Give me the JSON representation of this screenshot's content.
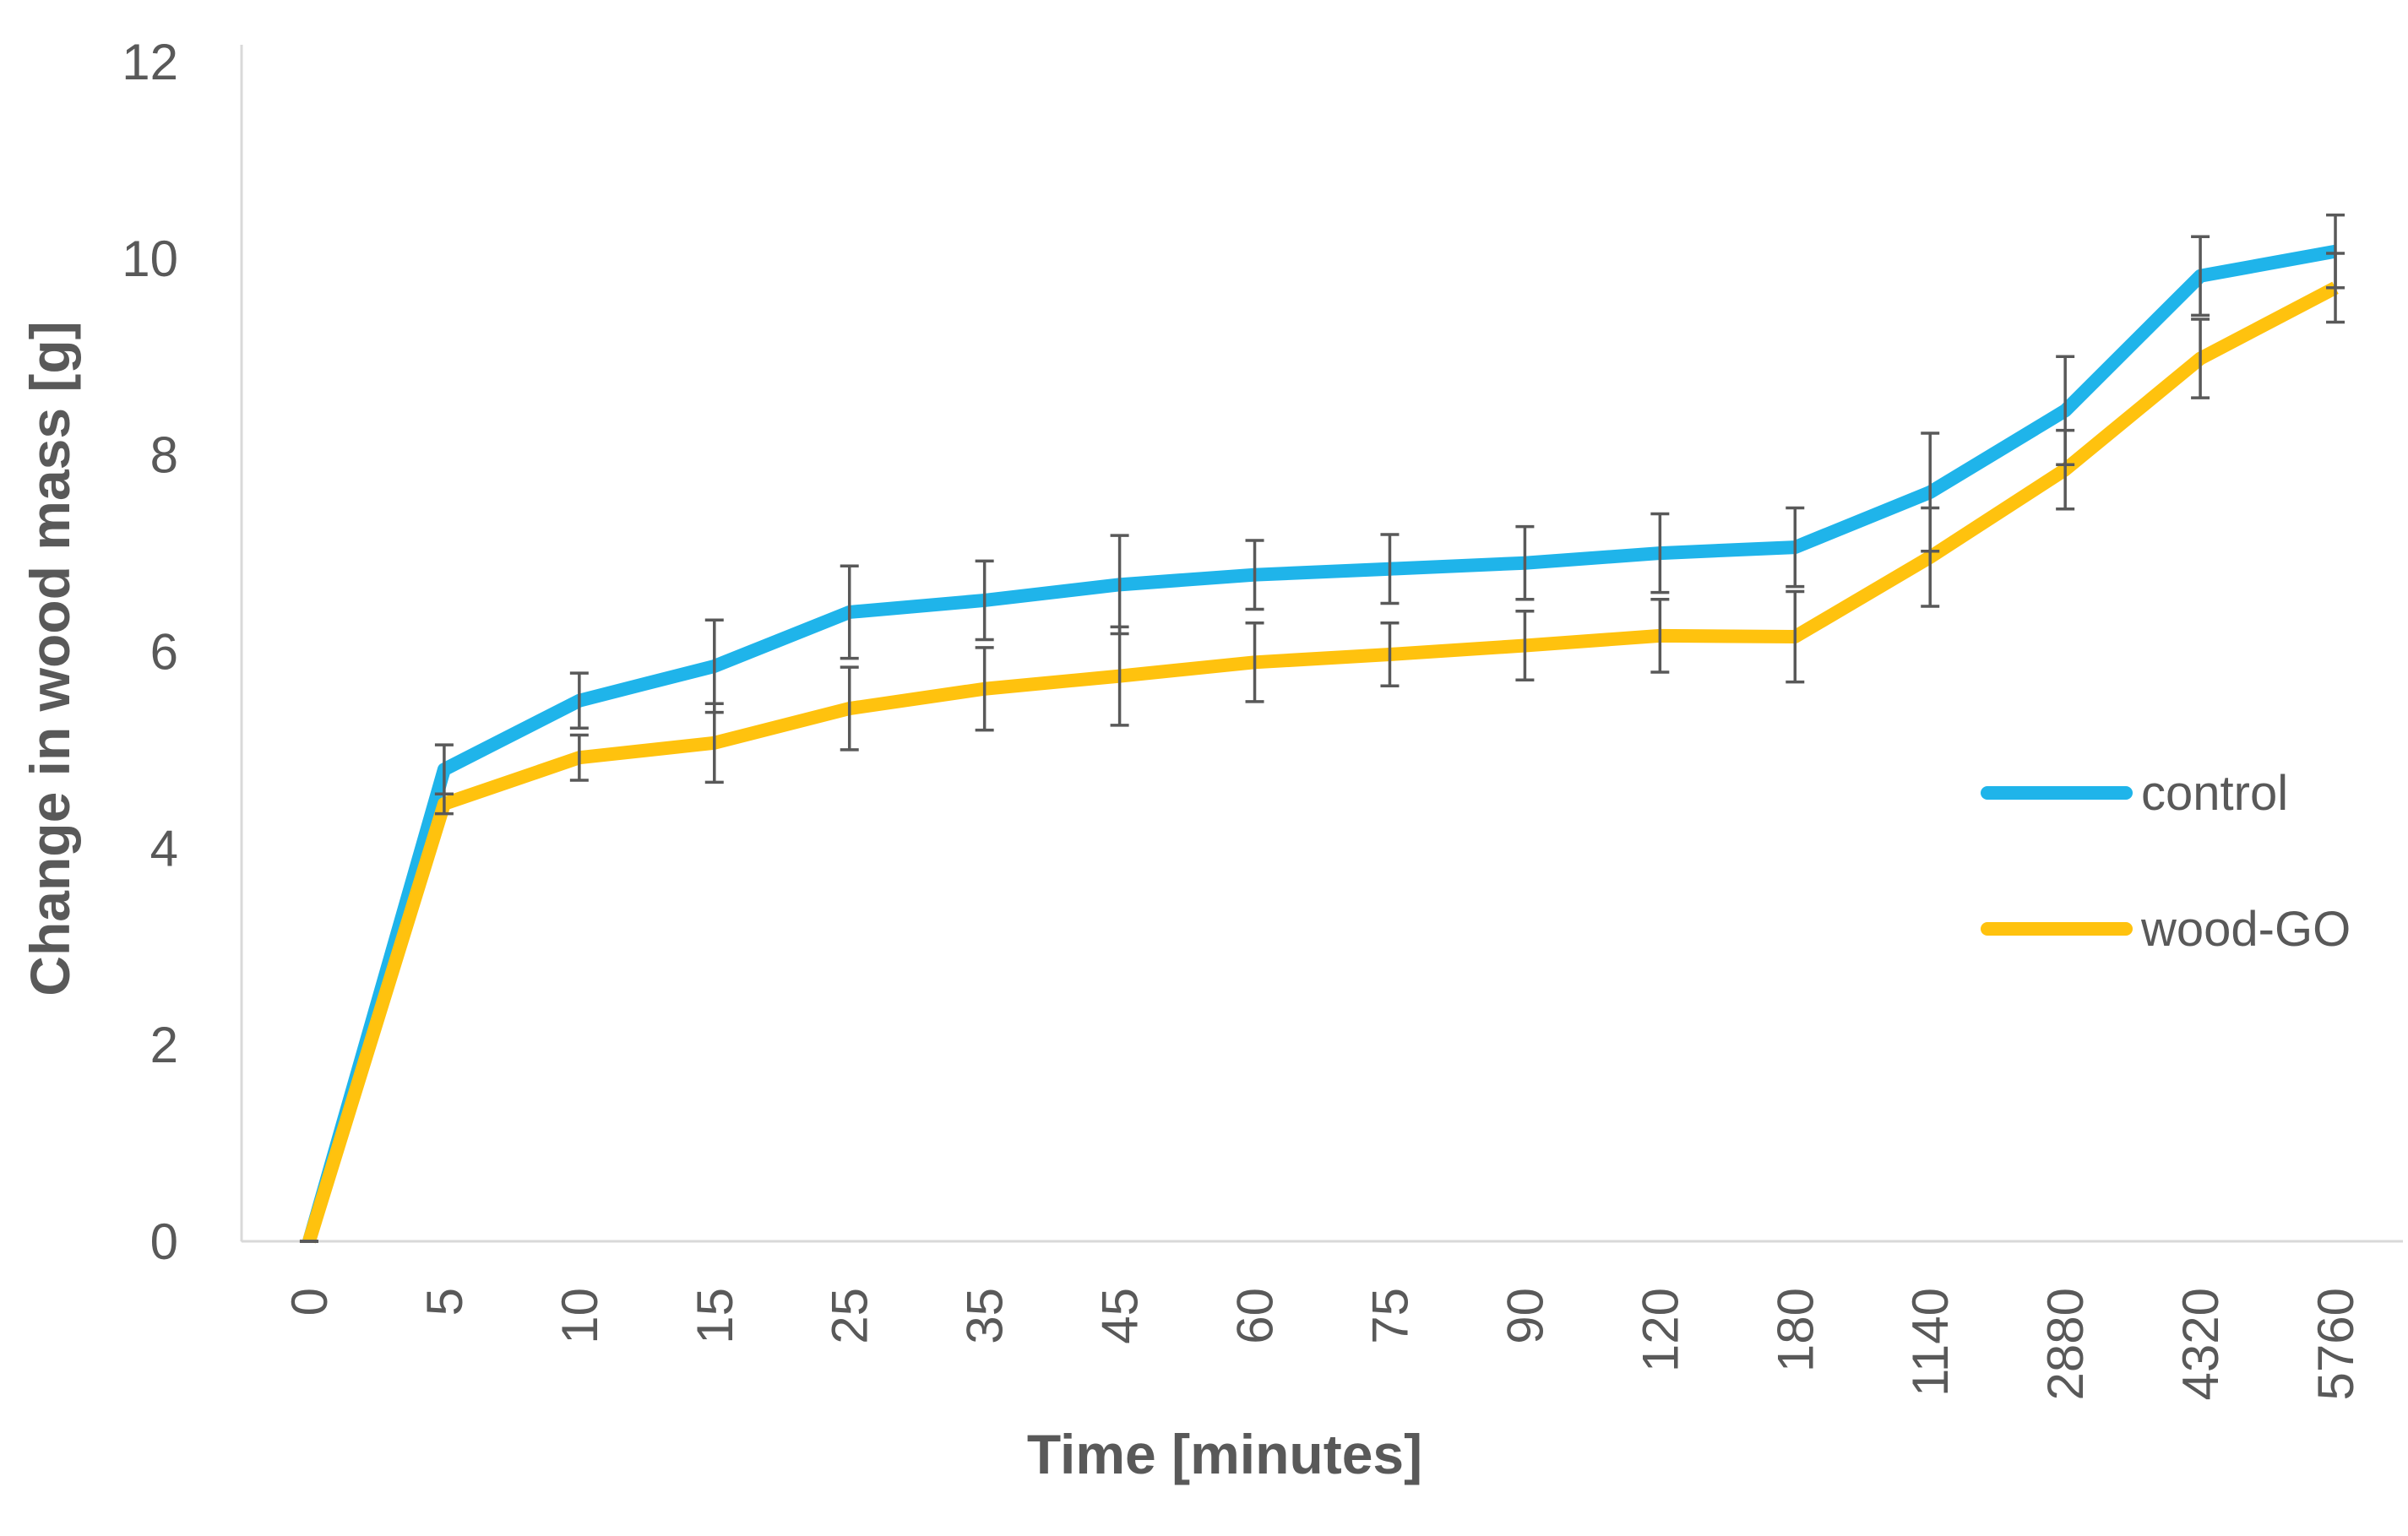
{
  "chart_data": {
    "type": "line",
    "x_label": "Time [minutes]",
    "y_label": "Change in wood mass [g]",
    "categories": [
      "0",
      "5",
      "10",
      "15",
      "25",
      "35",
      "45",
      "60",
      "75",
      "90",
      "120",
      "180",
      "1140",
      "2880",
      "4320",
      "5760"
    ],
    "series": [
      {
        "name": "control",
        "color": "#1fb4ea",
        "values": [
          0,
          4.8,
          5.5,
          5.85,
          6.4,
          6.52,
          6.68,
          6.78,
          6.84,
          6.9,
          7.0,
          7.06,
          7.62,
          8.45,
          9.82,
          10.07
        ],
        "errors": [
          0,
          0.25,
          0.28,
          0.47,
          0.47,
          0.4,
          0.5,
          0.35,
          0.35,
          0.37,
          0.4,
          0.4,
          0.6,
          0.55,
          0.4,
          0.37
        ]
      },
      {
        "name": "wood-GO",
        "color": "#ffc20e",
        "values": [
          0,
          4.45,
          4.92,
          5.07,
          5.42,
          5.62,
          5.75,
          5.89,
          5.97,
          6.06,
          6.16,
          6.15,
          6.96,
          7.85,
          8.98,
          9.7
        ],
        "errors": [
          0,
          0.1,
          0.23,
          0.4,
          0.42,
          0.42,
          0.5,
          0.4,
          0.32,
          0.35,
          0.37,
          0.46,
          0.5,
          0.4,
          0.4,
          0.35
        ]
      }
    ],
    "ylim": [
      0,
      12
    ],
    "yticks": [
      0,
      2,
      4,
      6,
      8,
      10,
      12
    ],
    "grid": false,
    "legend": "right"
  }
}
